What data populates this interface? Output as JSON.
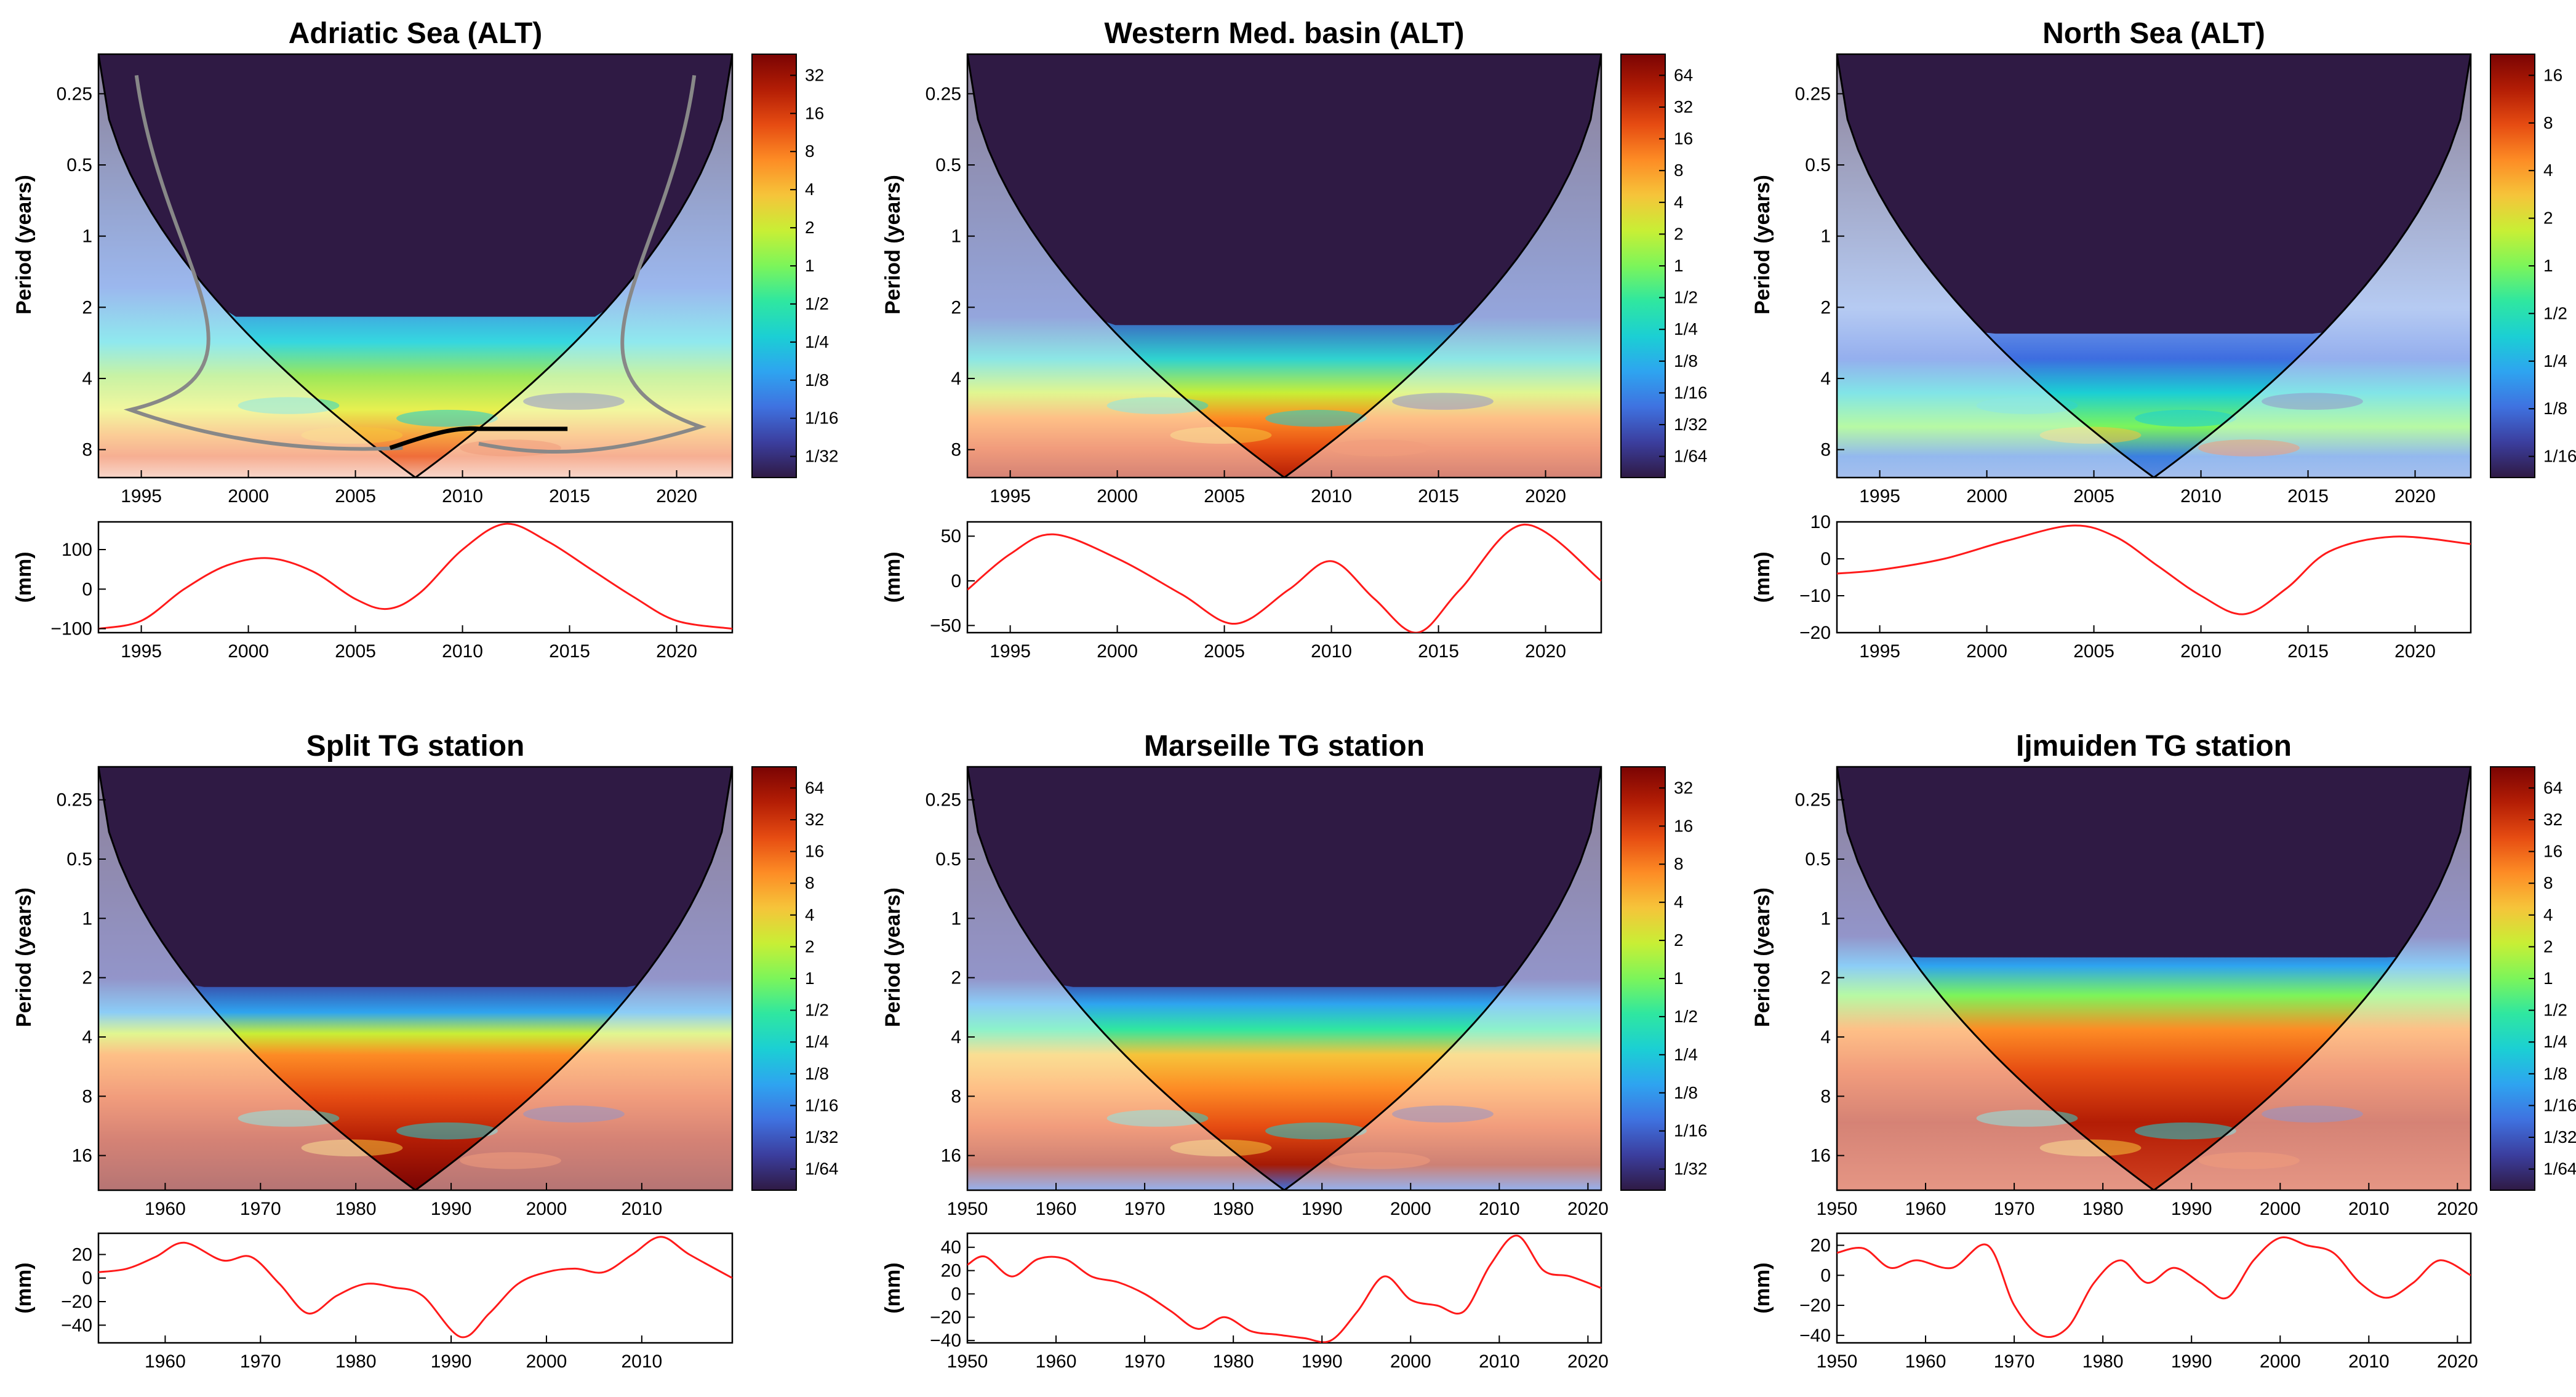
{
  "figure": {
    "ylabel_period": "Period (years)",
    "ylabel_signal": "(mm)"
  },
  "colorbar_colors": [
    "#2f1a44",
    "#3b3e9e",
    "#3f72e0",
    "#2ea4f0",
    "#1bcfd4",
    "#2fe7a0",
    "#7cf55a",
    "#c8ef35",
    "#f6c43a",
    "#fd8c25",
    "#e64c12",
    "#b31d05",
    "#7a0403"
  ],
  "panel_colors": {
    "coi_mask": "#2f1a44",
    "signal_line": "#ff1a1a",
    "bold_contour": "#000000",
    "grey_contour": "#888888"
  },
  "chart_data": [
    {
      "type": "heatmap",
      "title": "Adriatic Sea (ALT)",
      "xlim": [
        1993,
        2022.6
      ],
      "xticks": [
        "1995",
        "2000",
        "2005",
        "2010",
        "2015",
        "2020"
      ],
      "xtick_values": [
        1995,
        2000,
        2005,
        2010,
        2015,
        2020
      ],
      "yticks": [
        "0.25",
        "0.5",
        "1",
        "2",
        "4",
        "8"
      ],
      "ytick_values": [
        0.25,
        0.5,
        1,
        2,
        4,
        8
      ],
      "ylim": [
        0.17,
        10.5
      ],
      "colorbar_ticks": [
        "32",
        "16",
        "8",
        "4",
        "2",
        "1",
        "1/2",
        "1/4",
        "1/8",
        "1/16",
        "1/32"
      ],
      "colorbar_range": [
        0.02,
        64
      ],
      "contours": true,
      "signal": {
        "x": [
          1993,
          1995,
          1997,
          1999,
          2001,
          2003,
          2005,
          2006.5,
          2008,
          2010,
          2012,
          2014,
          2016,
          2018,
          2020,
          2022.6
        ],
        "y": [
          -100,
          -80,
          0,
          60,
          78,
          45,
          -25,
          -50,
          -10,
          100,
          165,
          120,
          50,
          -20,
          -80,
          -100
        ],
        "ylim": [
          -110,
          170
        ],
        "yticks": [
          "100",
          "0",
          "−100"
        ],
        "ytick_values": [
          100,
          0,
          -100
        ]
      }
    },
    {
      "type": "heatmap",
      "title": "Western Med. basin (ALT)",
      "xlim": [
        1993,
        2022.6
      ],
      "xticks": [
        "1995",
        "2000",
        "2005",
        "2010",
        "2015",
        "2020"
      ],
      "xtick_values": [
        1995,
        2000,
        2005,
        2010,
        2015,
        2020
      ],
      "yticks": [
        "0.25",
        "0.5",
        "1",
        "2",
        "4",
        "8"
      ],
      "ytick_values": [
        0.25,
        0.5,
        1,
        2,
        4,
        8
      ],
      "ylim": [
        0.17,
        10.5
      ],
      "colorbar_ticks": [
        "64",
        "32",
        "16",
        "8",
        "4",
        "2",
        "1",
        "1/2",
        "1/4",
        "1/8",
        "1/16",
        "1/32",
        "1/64"
      ],
      "colorbar_range": [
        0.01,
        128
      ],
      "contours": false,
      "signal": {
        "x": [
          1993,
          1995,
          1997,
          2000,
          2003,
          2005.5,
          2008,
          2010,
          2012,
          2014,
          2016,
          2019,
          2022.6
        ],
        "y": [
          -10,
          30,
          52,
          25,
          -15,
          -48,
          -10,
          22,
          -20,
          -58,
          -10,
          63,
          0
        ],
        "ylim": [
          -58,
          66
        ],
        "yticks": [
          "50",
          "0",
          "−50"
        ],
        "ytick_values": [
          50,
          0,
          -50
        ]
      }
    },
    {
      "type": "heatmap",
      "title": "North Sea (ALT)",
      "xlim": [
        1993,
        2022.6
      ],
      "xticks": [
        "1995",
        "2000",
        "2005",
        "2010",
        "2015",
        "2020"
      ],
      "xtick_values": [
        1995,
        2000,
        2005,
        2010,
        2015,
        2020
      ],
      "yticks": [
        "0.25",
        "0.5",
        "1",
        "2",
        "4",
        "8"
      ],
      "ytick_values": [
        0.25,
        0.5,
        1,
        2,
        4,
        8
      ],
      "ylim": [
        0.17,
        10.5
      ],
      "colorbar_ticks": [
        "16",
        "8",
        "4",
        "2",
        "1",
        "1/2",
        "1/4",
        "1/8",
        "1/16"
      ],
      "colorbar_range": [
        0.04,
        32
      ],
      "contours": false,
      "signal": {
        "x": [
          1993,
          1995,
          1998,
          2001,
          2004,
          2006,
          2008,
          2010,
          2012,
          2014,
          2016,
          2019,
          2022.6
        ],
        "y": [
          -4,
          -3,
          0,
          5,
          9,
          6,
          -2,
          -10,
          -15,
          -8,
          2,
          6,
          4
        ],
        "ylim": [
          -20,
          10
        ],
        "yticks": [
          "10",
          "0",
          "−10",
          "−20"
        ],
        "ytick_values": [
          10,
          0,
          -10,
          -20
        ]
      }
    },
    {
      "type": "heatmap",
      "title": "Split TG station",
      "xlim": [
        1953,
        2019.5
      ],
      "xticks": [
        "1960",
        "1970",
        "1980",
        "1990",
        "2000",
        "2010"
      ],
      "xtick_values": [
        1960,
        1970,
        1980,
        1990,
        2000,
        2010
      ],
      "yticks": [
        "0.25",
        "0.5",
        "1",
        "2",
        "4",
        "8",
        "16"
      ],
      "ytick_values": [
        0.25,
        0.5,
        1,
        2,
        4,
        8,
        16
      ],
      "ylim": [
        0.17,
        24
      ],
      "colorbar_ticks": [
        "64",
        "32",
        "16",
        "8",
        "4",
        "2",
        "1",
        "1/2",
        "1/4",
        "1/8",
        "1/16",
        "1/32",
        "1/64"
      ],
      "colorbar_range": [
        0.01,
        128
      ],
      "contours": false,
      "signal": {
        "x": [
          1953,
          1956,
          1959,
          1962,
          1966,
          1969,
          1972,
          1975,
          1978,
          1981,
          1984,
          1987,
          1991,
          1994,
          1997,
          2000,
          2003,
          2006,
          2009,
          2012,
          2015,
          2019.5
        ],
        "y": [
          5,
          8,
          18,
          30,
          15,
          18,
          -5,
          -30,
          -15,
          -5,
          -8,
          -15,
          -50,
          -30,
          -5,
          5,
          8,
          5,
          20,
          35,
          20,
          0
        ],
        "ylim": [
          -55,
          38
        ],
        "yticks": [
          "20",
          "0",
          "−20",
          "−40"
        ],
        "ytick_values": [
          20,
          0,
          -20,
          -40
        ]
      }
    },
    {
      "type": "heatmap",
      "title": "Marseille TG station",
      "xlim": [
        1950,
        2021.5
      ],
      "xticks": [
        "1950",
        "1960",
        "1970",
        "1980",
        "1990",
        "2000",
        "2010",
        "2020"
      ],
      "xtick_values": [
        1950,
        1960,
        1970,
        1980,
        1990,
        2000,
        2010,
        2020
      ],
      "yticks": [
        "0.25",
        "0.5",
        "1",
        "2",
        "4",
        "8",
        "16"
      ],
      "ytick_values": [
        0.25,
        0.5,
        1,
        2,
        4,
        8,
        16
      ],
      "ylim": [
        0.17,
        24
      ],
      "colorbar_ticks": [
        "32",
        "16",
        "8",
        "4",
        "2",
        "1",
        "1/2",
        "1/4",
        "1/8",
        "1/16",
        "1/32"
      ],
      "colorbar_range": [
        0.02,
        64
      ],
      "contours": false,
      "signal": {
        "x": [
          1950,
          1952,
          1955,
          1958,
          1961,
          1964,
          1967,
          1970,
          1973,
          1976,
          1979,
          1982,
          1985,
          1988,
          1991,
          1994,
          1997,
          2000,
          2003,
          2006,
          2009,
          2012,
          2015,
          2018,
          2021.5
        ],
        "y": [
          25,
          32,
          15,
          30,
          30,
          15,
          10,
          0,
          -15,
          -30,
          -20,
          -32,
          -35,
          -38,
          -40,
          -15,
          15,
          -5,
          -10,
          -15,
          25,
          50,
          20,
          15,
          5
        ],
        "ylim": [
          -42,
          52
        ],
        "yticks": [
          "40",
          "20",
          "0",
          "−20",
          "−40"
        ],
        "ytick_values": [
          40,
          20,
          0,
          -20,
          -40
        ]
      }
    },
    {
      "type": "heatmap",
      "title": "Ijmuiden TG station",
      "xlim": [
        1950,
        2021.5
      ],
      "xticks": [
        "1950",
        "1960",
        "1970",
        "1980",
        "1990",
        "2000",
        "2010",
        "2020"
      ],
      "xtick_values": [
        1950,
        1960,
        1970,
        1980,
        1990,
        2000,
        2010,
        2020
      ],
      "yticks": [
        "0.25",
        "0.5",
        "1",
        "2",
        "4",
        "8",
        "16"
      ],
      "ytick_values": [
        0.25,
        0.5,
        1,
        2,
        4,
        8,
        16
      ],
      "ylim": [
        0.17,
        24
      ],
      "colorbar_ticks": [
        "64",
        "32",
        "16",
        "8",
        "4",
        "2",
        "1",
        "1/2",
        "1/4",
        "1/8",
        "1/16",
        "1/32",
        "1/64"
      ],
      "colorbar_range": [
        0.01,
        128
      ],
      "contours": false,
      "signal": {
        "x": [
          1950,
          1953,
          1956,
          1959,
          1963,
          1967,
          1970,
          1973,
          1976,
          1979,
          1982,
          1985,
          1988,
          1991,
          1994,
          1997,
          2000,
          2003,
          2006,
          2009,
          2012,
          2015,
          2018,
          2021.5
        ],
        "y": [
          15,
          18,
          5,
          10,
          5,
          20,
          -20,
          -40,
          -35,
          -5,
          10,
          -5,
          5,
          -5,
          -15,
          10,
          25,
          20,
          15,
          -5,
          -15,
          -5,
          10,
          0
        ],
        "ylim": [
          -45,
          28
        ],
        "yticks": [
          "20",
          "0",
          "−20",
          "−40"
        ],
        "ytick_values": [
          20,
          0,
          -20,
          -40
        ]
      }
    }
  ]
}
